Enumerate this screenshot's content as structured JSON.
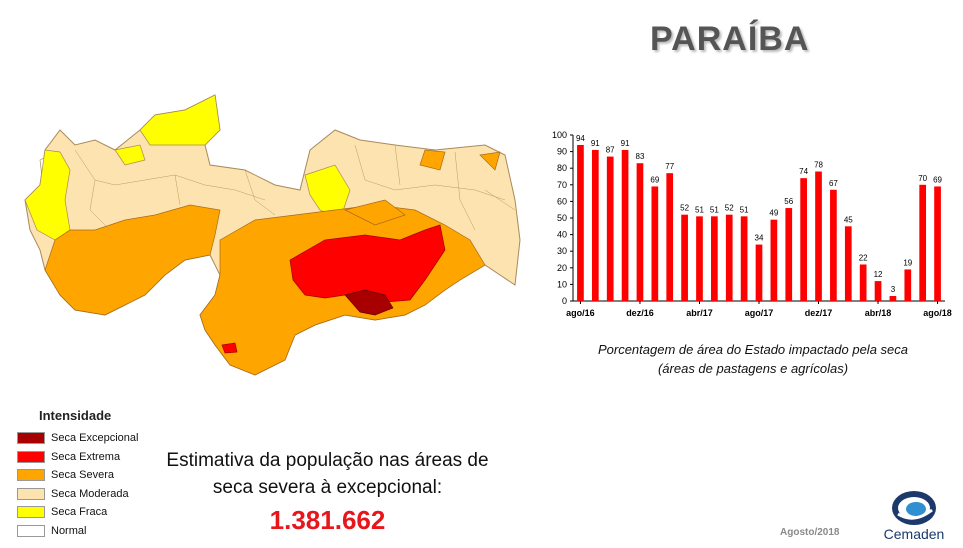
{
  "header": {
    "title": "PARAÍBA"
  },
  "legend": {
    "title": "Intensidade",
    "items": [
      {
        "label": "Seca Excepcional",
        "color": "#a80000"
      },
      {
        "label": "Seca Extrema",
        "color": "#ff0000"
      },
      {
        "label": "Seca Severa",
        "color": "#ffa500"
      },
      {
        "label": "Seca Moderada",
        "color": "#fce3b0"
      },
      {
        "label": "Seca Fraca",
        "color": "#ffff00"
      },
      {
        "label": "Normal",
        "color": "#ffffff"
      }
    ]
  },
  "estimate": {
    "line1": "Estimativa da população nas áreas de",
    "line2": "seca severa à excepcional:",
    "value": "1.381.662"
  },
  "chart_caption": {
    "line1": "Porcentagem de área do Estado impactado pela seca",
    "line2": "(áreas de pastagens e agrícolas)"
  },
  "footer": {
    "date": "Agosto/2018",
    "logo_text": "Cemaden"
  },
  "chart_data": {
    "type": "bar",
    "values": [
      94,
      91,
      87,
      91,
      83,
      69,
      77,
      52,
      51,
      51,
      52,
      51,
      34,
      49,
      56,
      74,
      78,
      67,
      45,
      22,
      12,
      3,
      19,
      70,
      69
    ],
    "data_labels": [
      "94",
      "91",
      "87",
      "91",
      "83",
      "69",
      "77",
      "52",
      "51",
      "51",
      "52",
      "51",
      "34",
      "49",
      "56",
      "74",
      "78",
      "67",
      "45",
      "22",
      "12",
      "3",
      "19",
      "70",
      "69"
    ],
    "x_tick_labels": [
      {
        "index": 0,
        "label": "ago/16"
      },
      {
        "index": 4,
        "label": "dez/16"
      },
      {
        "index": 8,
        "label": "abr/17"
      },
      {
        "index": 12,
        "label": "ago/17"
      },
      {
        "index": 16,
        "label": "dez/17"
      },
      {
        "index": 20,
        "label": "abr/18"
      },
      {
        "index": 24,
        "label": "ago/18"
      }
    ],
    "y_ticks": [
      0,
      10,
      20,
      30,
      40,
      50,
      60,
      70,
      80,
      90,
      100
    ],
    "ylim": [
      0,
      100
    ],
    "bar_color": "#ff0000",
    "grid": false,
    "legend": "none"
  }
}
